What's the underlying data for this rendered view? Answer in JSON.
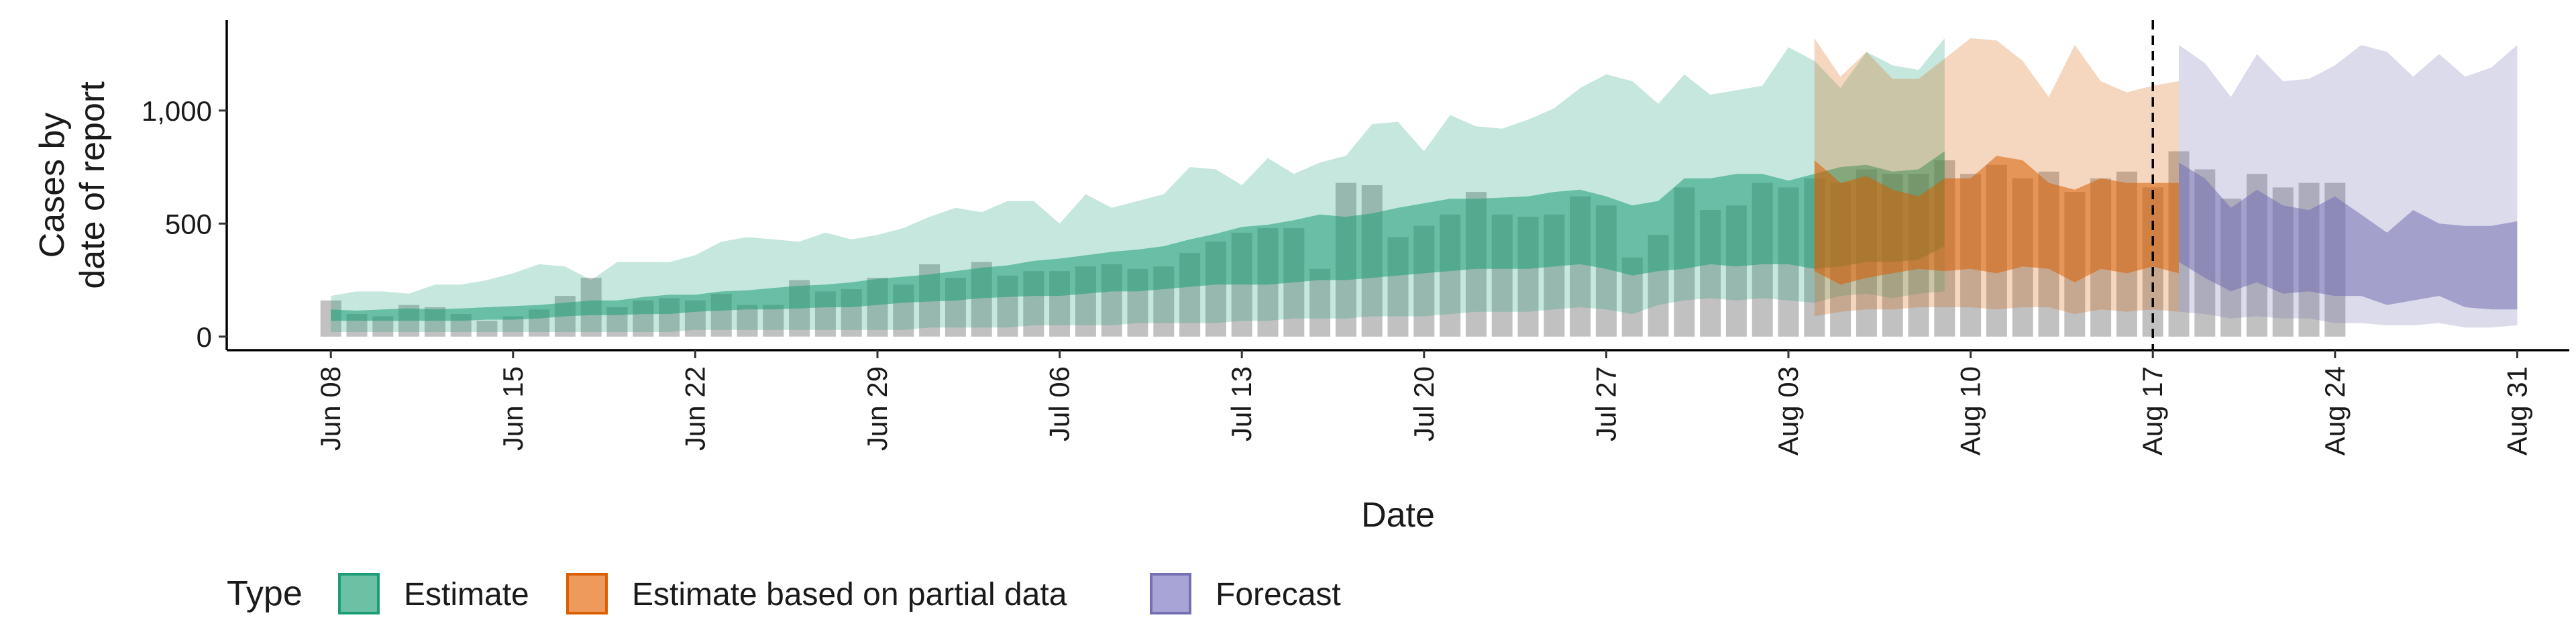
{
  "chart_data": {
    "type": "area",
    "xlabel": "Date",
    "ylabel_lines": [
      "Cases by",
      "date of report"
    ],
    "ylim": [
      -60,
      1400
    ],
    "x_range": [
      "2020-06-04",
      "2020-09-02"
    ],
    "y_ticks": [
      {
        "value": 0,
        "label": "0"
      },
      {
        "value": 500,
        "label": "500"
      },
      {
        "value": 1000,
        "label": "1,000"
      }
    ],
    "x_ticks": [
      {
        "date": "2020-06-08",
        "label": "Jun 08"
      },
      {
        "date": "2020-06-15",
        "label": "Jun 15"
      },
      {
        "date": "2020-06-22",
        "label": "Jun 22"
      },
      {
        "date": "2020-06-29",
        "label": "Jun 29"
      },
      {
        "date": "2020-07-06",
        "label": "Jul 06"
      },
      {
        "date": "2020-07-13",
        "label": "Jul 13"
      },
      {
        "date": "2020-07-20",
        "label": "Jul 20"
      },
      {
        "date": "2020-07-27",
        "label": "Jul 27"
      },
      {
        "date": "2020-08-03",
        "label": "Aug 03"
      },
      {
        "date": "2020-08-10",
        "label": "Aug 10"
      },
      {
        "date": "2020-08-17",
        "label": "Aug 17"
      },
      {
        "date": "2020-08-24",
        "label": "Aug 24"
      },
      {
        "date": "2020-08-31",
        "label": "Aug 31"
      }
    ],
    "vline_date": "2020-08-17",
    "legend": {
      "title": "Type",
      "position": "bottom",
      "items": [
        {
          "label": "Estimate",
          "fill": "#6CC0A3",
          "stroke": "#1B9E77"
        },
        {
          "label": "Estimate based on partial data",
          "fill": "#EE9A5C",
          "stroke": "#D95F02"
        },
        {
          "label": "Forecast",
          "fill": "#A8A5D6",
          "stroke": "#7570B3"
        }
      ]
    },
    "colors": {
      "estimate": "#1B9E77",
      "partial": "#D95F02",
      "forecast": "#7570B3",
      "bars": "#A6A6A6"
    },
    "reported_cases": {
      "start": "2020-06-08",
      "values": [
        160,
        100,
        90,
        140,
        130,
        100,
        70,
        90,
        120,
        180,
        260,
        130,
        160,
        170,
        160,
        190,
        140,
        140,
        250,
        200,
        210,
        260,
        230,
        320,
        260,
        330,
        270,
        290,
        290,
        310,
        320,
        300,
        310,
        370,
        420,
        460,
        480,
        480,
        300,
        680,
        670,
        440,
        490,
        540,
        640,
        540,
        530,
        540,
        620,
        580,
        350,
        450,
        660,
        560,
        580,
        680,
        660,
        700,
        680,
        740,
        720,
        720,
        780,
        720,
        760,
        700,
        730,
        640,
        700,
        730,
        660,
        820,
        740,
        610,
        720,
        660,
        680,
        680
      ]
    },
    "series": [
      {
        "name": "Estimate",
        "key": "estimate",
        "start": "2020-06-08",
        "outer_lo": [
          20,
          20,
          20,
          20,
          20,
          20,
          20,
          20,
          20,
          20,
          20,
          20,
          20,
          20,
          30,
          30,
          30,
          30,
          30,
          30,
          30,
          30,
          30,
          40,
          40,
          40,
          40,
          50,
          50,
          50,
          50,
          60,
          60,
          60,
          60,
          70,
          70,
          80,
          80,
          80,
          90,
          90,
          90,
          100,
          110,
          110,
          110,
          120,
          130,
          120,
          100,
          140,
          160,
          170,
          160,
          170,
          160,
          150,
          180,
          190,
          170,
          190,
          200
        ],
        "inner_lo": [
          70,
          70,
          70,
          70,
          70,
          70,
          75,
          75,
          80,
          90,
          95,
          95,
          100,
          100,
          110,
          115,
          120,
          120,
          125,
          130,
          130,
          140,
          150,
          155,
          160,
          170,
          175,
          180,
          180,
          190,
          200,
          200,
          210,
          220,
          230,
          230,
          230,
          240,
          250,
          250,
          260,
          270,
          280,
          290,
          300,
          300,
          300,
          310,
          320,
          300,
          270,
          290,
          300,
          320,
          310,
          320,
          320,
          300,
          310,
          330,
          330,
          340,
          400
        ],
        "inner_hi": [
          120,
          115,
          120,
          125,
          120,
          125,
          130,
          135,
          140,
          150,
          160,
          160,
          175,
          185,
          185,
          200,
          205,
          215,
          225,
          230,
          240,
          255,
          265,
          275,
          290,
          305,
          315,
          335,
          345,
          360,
          375,
          385,
          400,
          430,
          455,
          485,
          495,
          515,
          540,
          530,
          545,
          570,
          590,
          610,
          610,
          615,
          620,
          640,
          650,
          620,
          580,
          600,
          700,
          700,
          720,
          720,
          690,
          720,
          750,
          760,
          730,
          740,
          820
        ],
        "outer_hi": [
          180,
          200,
          200,
          190,
          230,
          230,
          250,
          280,
          320,
          310,
          250,
          330,
          330,
          330,
          360,
          420,
          440,
          430,
          420,
          460,
          430,
          450,
          480,
          530,
          570,
          550,
          600,
          600,
          500,
          630,
          570,
          600,
          630,
          750,
          740,
          670,
          790,
          720,
          770,
          800,
          940,
          950,
          820,
          980,
          930,
          920,
          960,
          1010,
          1100,
          1160,
          1130,
          1030,
          1160,
          1070,
          1090,
          1110,
          1280,
          1220,
          1100,
          1260,
          1200,
          1180,
          1320
        ]
      },
      {
        "name": "Estimate based on partial data",
        "key": "partial",
        "start": "2020-08-04",
        "outer_lo": [
          90,
          110,
          120,
          120,
          130,
          130,
          130,
          120,
          130,
          130,
          100,
          120,
          110,
          120,
          110
        ],
        "inner_lo": [
          290,
          230,
          260,
          280,
          300,
          290,
          300,
          280,
          310,
          300,
          240,
          300,
          280,
          310,
          280
        ],
        "inner_hi": [
          780,
          680,
          710,
          650,
          620,
          700,
          700,
          800,
          780,
          680,
          650,
          700,
          680,
          680,
          680
        ],
        "outer_hi": [
          1320,
          1150,
          1260,
          1140,
          1140,
          1230,
          1320,
          1310,
          1220,
          1060,
          1290,
          1130,
          1080,
          1110,
          1130
        ]
      },
      {
        "name": "Forecast",
        "key": "forecast",
        "start": "2020-08-18",
        "outer_lo": [
          110,
          100,
          80,
          90,
          80,
          80,
          60,
          60,
          50,
          50,
          60,
          40,
          40,
          50
        ],
        "inner_lo": [
          330,
          260,
          200,
          240,
          190,
          200,
          180,
          180,
          140,
          160,
          180,
          130,
          120,
          120
        ],
        "inner_hi": [
          770,
          700,
          570,
          650,
          580,
          560,
          620,
          540,
          460,
          560,
          500,
          490,
          490,
          510
        ],
        "outer_hi": [
          1290,
          1210,
          1060,
          1250,
          1130,
          1140,
          1200,
          1290,
          1260,
          1150,
          1250,
          1150,
          1190,
          1290
        ]
      }
    ]
  }
}
